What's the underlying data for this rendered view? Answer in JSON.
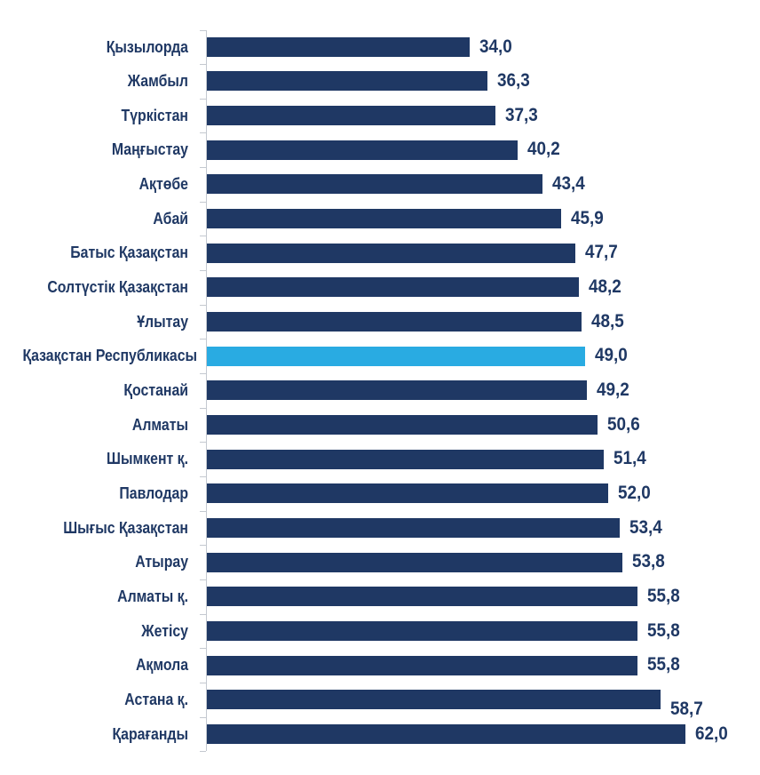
{
  "chart_data": {
    "type": "bar",
    "orientation": "horizontal",
    "title": "",
    "xlabel": "",
    "ylabel": "",
    "xlim": [
      0,
      71
    ],
    "grid": false,
    "legend": "none",
    "value_label_format": "comma-decimal",
    "bar_color": "#1f3864",
    "highlight_color": "#29abe2",
    "axis_color": "#c4c9d0",
    "text_color": "#1f3864",
    "items": [
      {
        "label": "Қызылорда",
        "value": 34.0,
        "display": "34,0",
        "highlight": false
      },
      {
        "label": "Жамбыл",
        "value": 36.3,
        "display": "36,3",
        "highlight": false
      },
      {
        "label": "Түркістан",
        "value": 37.3,
        "display": "37,3",
        "highlight": false
      },
      {
        "label": "Маңғыстау",
        "value": 40.2,
        "display": "40,2",
        "highlight": false
      },
      {
        "label": "Ақтөбе",
        "value": 43.4,
        "display": "43,4",
        "highlight": false
      },
      {
        "label": "Абай",
        "value": 45.9,
        "display": "45,9",
        "highlight": false
      },
      {
        "label": "Батыс Қазақстан",
        "value": 47.7,
        "display": "47,7",
        "highlight": false
      },
      {
        "label": "Солтүстік Қазақстан",
        "value": 48.2,
        "display": "48,2",
        "highlight": false
      },
      {
        "label": "Ұлытау",
        "value": 48.5,
        "display": "48,5",
        "highlight": false
      },
      {
        "label": "Қазақстан Республикасы",
        "value": 49.0,
        "display": "49,0",
        "highlight": true
      },
      {
        "label": "Қостанай",
        "value": 49.2,
        "display": "49,2",
        "highlight": false
      },
      {
        "label": "Алматы",
        "value": 50.6,
        "display": "50,6",
        "highlight": false
      },
      {
        "label": "Шымкент қ.",
        "value": 51.4,
        "display": "51,4",
        "highlight": false
      },
      {
        "label": "Павлодар",
        "value": 52.0,
        "display": "52,0",
        "highlight": false
      },
      {
        "label": "Шығыс Қазақстан",
        "value": 53.4,
        "display": "53,4",
        "highlight": false
      },
      {
        "label": "Атырау",
        "value": 53.8,
        "display": "53,8",
        "highlight": false
      },
      {
        "label": "Алматы қ.",
        "value": 55.8,
        "display": "55,8",
        "highlight": false
      },
      {
        "label": "Жетісу",
        "value": 55.8,
        "display": "55,8",
        "highlight": false
      },
      {
        "label": "Ақмола",
        "value": 55.8,
        "display": "55,8",
        "highlight": false
      },
      {
        "label": "Астана қ.",
        "value": 58.7,
        "display": "58,7",
        "highlight": false
      },
      {
        "label": "Қарағанды",
        "value": 62.0,
        "display": "62,0",
        "highlight": false
      }
    ]
  }
}
